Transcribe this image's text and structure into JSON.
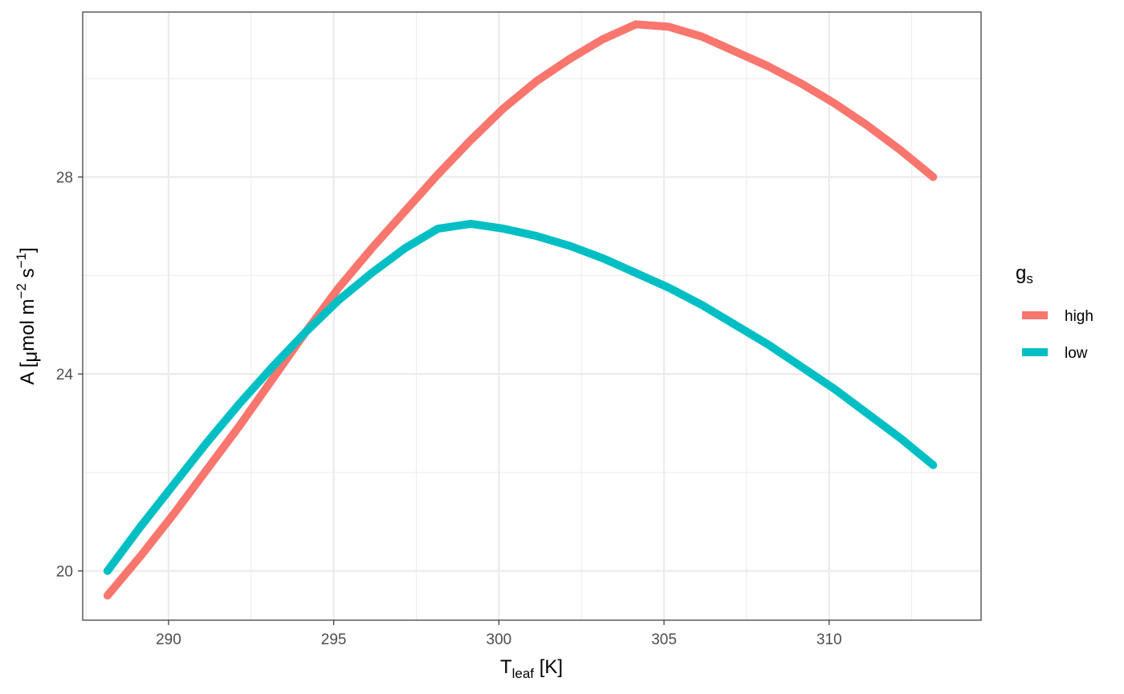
{
  "chart_data": {
    "type": "line",
    "xlabel": {
      "main": "T",
      "sub": "leaf",
      "unit": " [K]"
    },
    "ylabel": {
      "prefix": "A [",
      "mu": "μ",
      "text1": "mol m",
      "sup1": "−2",
      "text2": " s",
      "sup2": "−1",
      "close": "]"
    },
    "xlim": [
      287.4,
      314.6
    ],
    "ylim": [
      19.0,
      31.35
    ],
    "x_ticks": [
      290,
      295,
      300,
      305,
      310
    ],
    "x_tick_labels": [
      "290",
      "295",
      "300",
      "305",
      "310"
    ],
    "y_ticks": [
      20,
      24,
      28
    ],
    "y_tick_labels": [
      "20",
      "24",
      "28"
    ],
    "grid": true,
    "legend": {
      "title_main": "g",
      "title_sub": "s",
      "position": "right"
    },
    "series": [
      {
        "name": "high",
        "color": "#F8766D",
        "x": [
          288.15,
          289.15,
          290.15,
          291.15,
          292.15,
          293.15,
          294.15,
          295.15,
          296.15,
          297.15,
          298.15,
          299.15,
          300.15,
          301.15,
          302.15,
          303.15,
          304.15,
          305.15,
          306.15,
          307.15,
          308.15,
          309.15,
          310.15,
          311.15,
          312.15,
          313.15
        ],
        "y": [
          19.5,
          20.3,
          21.15,
          22.05,
          22.95,
          23.9,
          24.85,
          25.75,
          26.55,
          27.3,
          28.05,
          28.75,
          29.4,
          29.95,
          30.4,
          30.8,
          31.1,
          31.05,
          30.85,
          30.55,
          30.25,
          29.9,
          29.5,
          29.05,
          28.55,
          28.0
        ]
      },
      {
        "name": "low",
        "color": "#00BFC4",
        "x": [
          288.15,
          289.15,
          290.15,
          291.15,
          292.15,
          293.15,
          294.15,
          295.15,
          296.15,
          297.15,
          298.15,
          299.15,
          300.15,
          301.15,
          302.15,
          303.15,
          304.15,
          305.15,
          306.15,
          307.15,
          308.15,
          309.15,
          310.15,
          311.15,
          312.15,
          313.15
        ],
        "y": [
          20.0,
          20.9,
          21.75,
          22.6,
          23.4,
          24.15,
          24.85,
          25.5,
          26.05,
          26.55,
          26.95,
          27.05,
          26.95,
          26.8,
          26.6,
          26.35,
          26.05,
          25.75,
          25.4,
          25.0,
          24.6,
          24.15,
          23.7,
          23.2,
          22.7,
          22.15
        ]
      }
    ]
  }
}
